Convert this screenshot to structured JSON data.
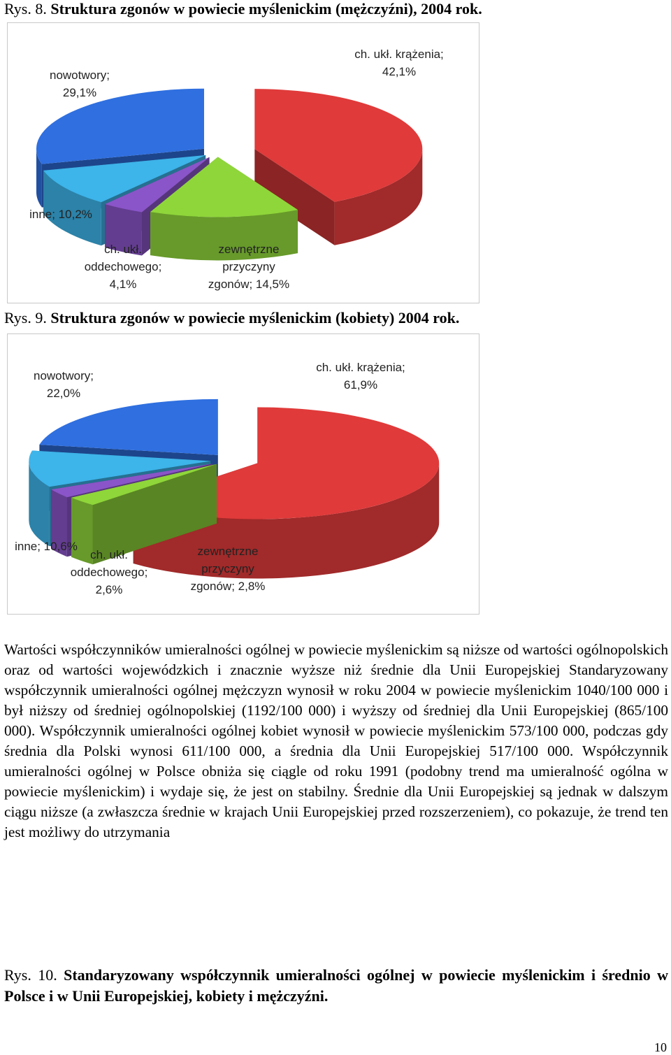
{
  "fig8": {
    "number": "Rys. 8.",
    "title": "Struktura zgonów w powiecie myślenickim (mężczyźni), 2004 rok."
  },
  "fig9": {
    "number": "Rys. 9.",
    "title": "Struktura zgonów w powiecie myślenickim (kobiety) 2004 rok."
  },
  "chart_data": [
    {
      "type": "pie",
      "title": "Struktura zgonów w powiecie myślenickim (mężczyźni), 2004 rok.",
      "slices": [
        {
          "name": "ch. ukł. krążenia",
          "value": 42.1,
          "color": "#e03a3a"
        },
        {
          "name": "zewnętrzne przyczyny zgonów",
          "value": 14.5,
          "color": "#8fd63a"
        },
        {
          "name": "ch. ukł. oddechowego",
          "value": 4.1,
          "color": "#8a55c8"
        },
        {
          "name": "inne",
          "value": 10.2,
          "color": "#3db4ea"
        },
        {
          "name": "nowotwory",
          "value": 29.1,
          "color": "#2f6fe0"
        }
      ],
      "labels": {
        "krazenia": [
          "ch. ukł. krążenia;",
          "42,1%"
        ],
        "zewnetrzne": [
          "zewnętrzne",
          "przyczyny",
          "zgonów; 14,5%"
        ],
        "oddechowego": [
          "ch. ukł.",
          "oddechowego;",
          "4,1%"
        ],
        "inne": [
          "inne; 10,2%"
        ],
        "nowotwory": [
          "nowotwory;",
          "29,1%"
        ]
      }
    },
    {
      "type": "pie",
      "title": "Struktura zgonów w powiecie myślenickim (kobiety) 2004 rok.",
      "slices": [
        {
          "name": "ch. ukł. krążenia",
          "value": 61.9,
          "color": "#e03a3a"
        },
        {
          "name": "zewnętrzne przyczyny zgonów",
          "value": 2.8,
          "color": "#8fd63a"
        },
        {
          "name": "ch. ukł. oddechowego",
          "value": 2.6,
          "color": "#8a55c8"
        },
        {
          "name": "inne",
          "value": 10.6,
          "color": "#3db4ea"
        },
        {
          "name": "nowotwory",
          "value": 22.0,
          "color": "#2f6fe0"
        }
      ],
      "labels": {
        "krazenia": [
          "ch. ukł. krążenia;",
          "61,9%"
        ],
        "zewnetrzne": [
          "zewnętrzne",
          "przyczyny",
          "zgonów; 2,8%"
        ],
        "oddechowego": [
          "ch. ukł.",
          "oddechowego;",
          "2,6%"
        ],
        "inne": [
          "inne; 10,6%"
        ],
        "nowotwory": [
          "nowotwory;",
          "22,0%"
        ]
      }
    }
  ],
  "body_text": "Wartości współczynników umieralności ogólnej w powiecie myślenickim są niższe od wartości ogólnopolskich oraz od wartości wojewódzkich i znacznie wyższe niż średnie dla Unii Europejskiej Standaryzowany współczynnik umieralności ogólnej mężczyzn wynosił w roku 2004 w powiecie myślenickim 1040/100 000 i był niższy od średniej ogólnopolskiej (1192/100 000) i wyższy od średniej dla Unii Europejskiej (865/100 000). Współczynnik umieralności ogólnej kobiet wynosił w powiecie myślenickim 573/100 000, podczas gdy średnia dla Polski wynosi 611/100 000, a średnia dla Unii Europejskiej 517/100 000. Współczynnik umieralności ogólnej w Polsce obniża się ciągle od roku 1991 (podobny trend ma umieralność ogólna w powiecie myślenickim) i wydaje się, że jest on stabilny. Średnie dla Unii Europejskiej są jednak w dalszym ciągu niższe (a zwłaszcza średnie w krajach Unii Europejskiej przed rozszerzeniem), co pokazuje, że trend ten jest możliwy do utrzymania",
  "fig10": {
    "number": "Rys. 10.",
    "title": "Standaryzowany współczynnik umieralności ogólnej w powiecie myślenickim i średnio w Polsce i w Unii Europejskiej, kobiety i mężczyźni."
  },
  "page_number": "10"
}
